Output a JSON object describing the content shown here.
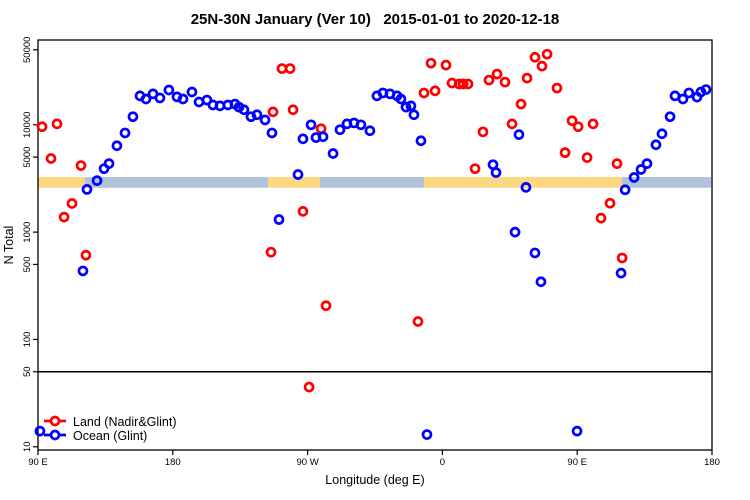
{
  "chart_data": {
    "type": "scatter",
    "title": "25N-30N January (Ver 10)   2015-01-01 to 2020-12-18",
    "xlabel": "Longitude (deg E)",
    "ylabel": "N Total",
    "y_scale": "log10",
    "ylim": [
      10,
      60000
    ],
    "y_ticks": [
      50000,
      10000,
      5000,
      1000,
      500,
      100,
      50,
      10
    ],
    "x_ticks": [
      {
        "label": "90 E",
        "pos": 90
      },
      {
        "label": "180",
        "pos": 180
      },
      {
        "label": "90 W",
        "pos": 270
      },
      {
        "label": "0",
        "pos": 360
      },
      {
        "label": "90 E",
        "pos": 450
      },
      {
        "label": "180",
        "pos": 540
      }
    ],
    "reference_line_y": 50,
    "band": {
      "y_range": [
        2590,
        3260
      ],
      "segments": [
        {
          "from": 90.0,
          "to": 121.4,
          "color": "#FBD87F"
        },
        {
          "from": 121.4,
          "to": 243.6,
          "color": "#AFC3DD"
        },
        {
          "from": 243.6,
          "to": 278.3,
          "color": "#FBD87F"
        },
        {
          "from": 278.3,
          "to": 347.7,
          "color": "#AFC3DD"
        },
        {
          "from": 347.7,
          "to": 480.0,
          "color": "#FBD87F"
        },
        {
          "from": 480.0,
          "to": 539.3,
          "color": "#AFC3DD"
        }
      ]
    },
    "legend": {
      "position": "bottom-left"
    },
    "series": [
      {
        "name": "Land (Nadir&Glint)",
        "color": "#FF0000",
        "points": [
          [
            92.7,
            9600
          ],
          [
            98.7,
            4850
          ],
          [
            102.7,
            10200
          ],
          [
            107.4,
            1380
          ],
          [
            112.7,
            1850
          ],
          [
            118.7,
            4170
          ],
          [
            122.0,
            610
          ],
          [
            245.6,
            650
          ],
          [
            246.9,
            13200
          ],
          [
            252.9,
            33400
          ],
          [
            258.3,
            33400
          ],
          [
            260.3,
            13800
          ],
          [
            266.9,
            1560
          ],
          [
            271.0,
            36
          ],
          [
            279.0,
            9200
          ],
          [
            282.3,
            206
          ],
          [
            343.7,
            147
          ],
          [
            347.7,
            19800
          ],
          [
            352.4,
            37500
          ],
          [
            355.1,
            20700
          ],
          [
            362.4,
            36000
          ],
          [
            366.4,
            24500
          ],
          [
            371.1,
            24000
          ],
          [
            373.8,
            24000
          ],
          [
            377.1,
            24000
          ],
          [
            381.8,
            3900
          ],
          [
            387.1,
            8600
          ],
          [
            391.1,
            26100
          ],
          [
            396.5,
            29700
          ],
          [
            401.8,
            25000
          ],
          [
            406.5,
            10200
          ],
          [
            412.5,
            15600
          ],
          [
            416.5,
            27200
          ],
          [
            421.8,
            42600
          ],
          [
            426.5,
            35200
          ],
          [
            429.9,
            45500
          ],
          [
            436.5,
            22000
          ],
          [
            441.9,
            5500
          ],
          [
            446.6,
            10900
          ],
          [
            450.6,
            9600
          ],
          [
            456.6,
            4950
          ],
          [
            460.6,
            10200
          ],
          [
            465.9,
            1350
          ],
          [
            471.9,
            1860
          ],
          [
            476.6,
            4350
          ],
          [
            480.0,
            575
          ]
        ]
      },
      {
        "name": "Ocean (Glint)",
        "color": "#0000FF",
        "points": [
          [
            91.3,
            14
          ],
          [
            120.0,
            435
          ],
          [
            122.7,
            2500
          ],
          [
            129.4,
            3020
          ],
          [
            134.1,
            3900
          ],
          [
            137.4,
            4350
          ],
          [
            142.7,
            6380
          ],
          [
            148.1,
            8400
          ],
          [
            153.4,
            11900
          ],
          [
            158.1,
            18600
          ],
          [
            162.1,
            17400
          ],
          [
            166.8,
            19400
          ],
          [
            171.4,
            17800
          ],
          [
            177.4,
            21100
          ],
          [
            182.8,
            18200
          ],
          [
            186.8,
            17400
          ],
          [
            192.8,
            20200
          ],
          [
            197.5,
            16300
          ],
          [
            202.8,
            17000
          ],
          [
            206.8,
            15300
          ],
          [
            211.5,
            15000
          ],
          [
            216.8,
            15300
          ],
          [
            221.5,
            15600
          ],
          [
            224.2,
            14600
          ],
          [
            227.5,
            13800
          ],
          [
            232.2,
            11900
          ],
          [
            236.2,
            12400
          ],
          [
            241.6,
            11100
          ],
          [
            246.2,
            8400
          ],
          [
            250.9,
            1310
          ],
          [
            263.6,
            3440
          ],
          [
            266.9,
            7400
          ],
          [
            272.3,
            10000
          ],
          [
            275.6,
            7600
          ],
          [
            280.3,
            7740
          ],
          [
            287.0,
            5400
          ],
          [
            291.6,
            9000
          ],
          [
            296.3,
            10200
          ],
          [
            301.0,
            10400
          ],
          [
            305.6,
            10000
          ],
          [
            311.6,
            8800
          ],
          [
            316.3,
            18600
          ],
          [
            320.3,
            19800
          ],
          [
            325.0,
            19400
          ],
          [
            329.7,
            18600
          ],
          [
            332.3,
            17400
          ],
          [
            335.7,
            14600
          ],
          [
            339.0,
            15000
          ],
          [
            341.0,
            12400
          ],
          [
            345.7,
            7100
          ],
          [
            349.7,
            13
          ],
          [
            393.8,
            4250
          ],
          [
            395.8,
            3590
          ],
          [
            408.5,
            1000
          ],
          [
            411.1,
            8100
          ],
          [
            415.8,
            2610
          ],
          [
            421.8,
            640
          ],
          [
            425.8,
            345
          ],
          [
            449.9,
            14
          ],
          [
            479.3,
            415
          ],
          [
            482.0,
            2480
          ],
          [
            488.0,
            3230
          ],
          [
            492.6,
            3830
          ],
          [
            496.6,
            4350
          ],
          [
            502.6,
            6520
          ],
          [
            506.6,
            8250
          ],
          [
            512.0,
            11900
          ],
          [
            515.3,
            18600
          ],
          [
            520.6,
            17400
          ],
          [
            524.6,
            19800
          ],
          [
            530.0,
            18100
          ],
          [
            532.6,
            20200
          ],
          [
            536.0,
            21300
          ]
        ]
      }
    ]
  }
}
